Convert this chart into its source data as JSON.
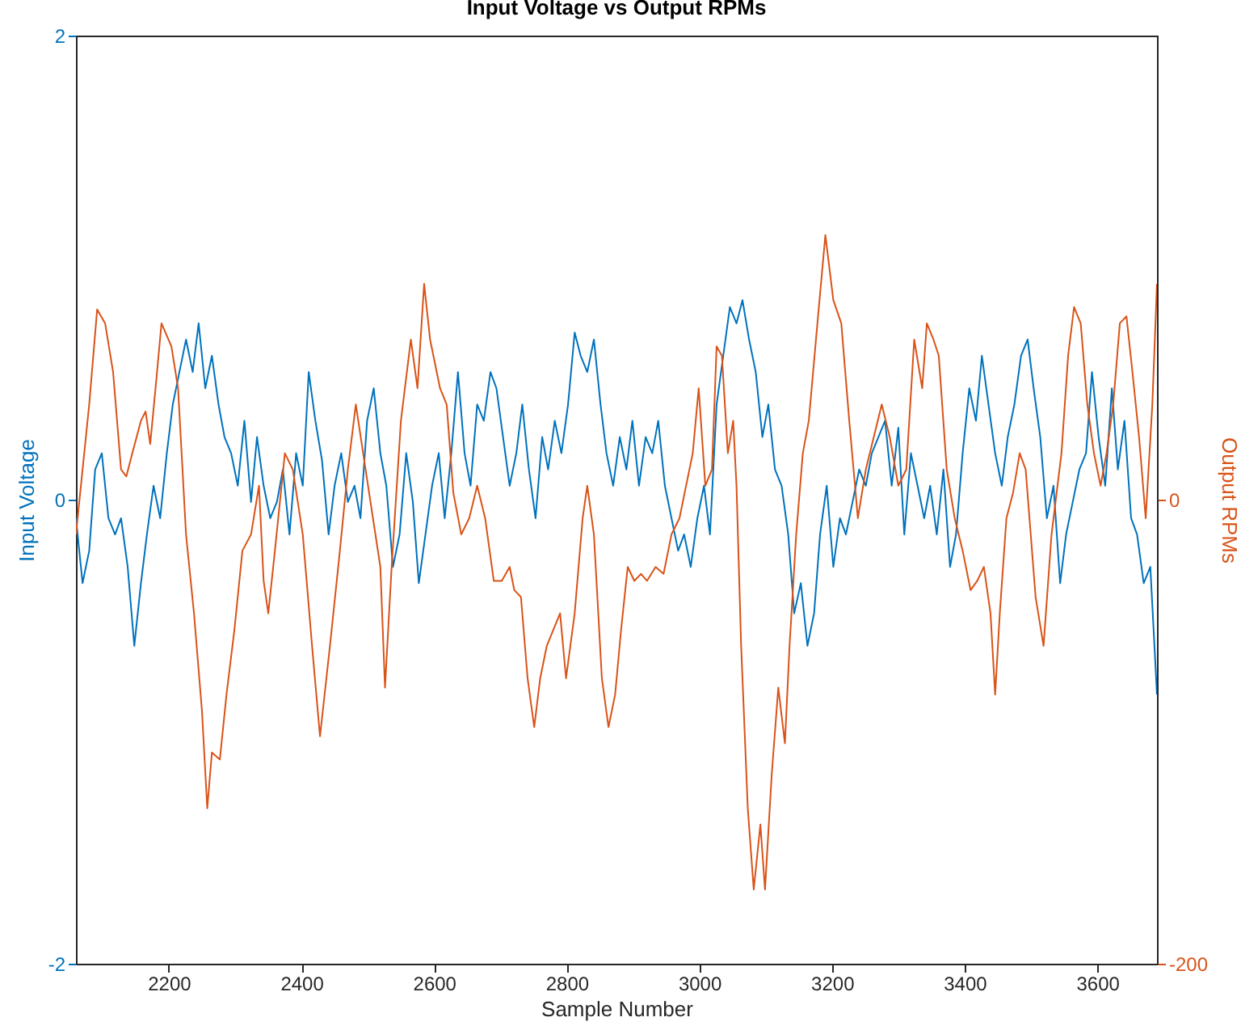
{
  "chart_data": {
    "type": "line",
    "title": "Input Voltage vs Output RPMs",
    "xlabel": "Sample Number",
    "ylabel": "Input Voltage",
    "y2label": "Output RPMs",
    "xlim": [
      2060,
      3690
    ],
    "xticks": [
      2200,
      2400,
      2600,
      2800,
      3000,
      3200,
      3400,
      3600
    ],
    "ylim": [
      -2,
      2
    ],
    "yticks": [
      -2,
      0,
      2
    ],
    "y2lim": [
      -200,
      200
    ],
    "y2ticks": [
      -200,
      0
    ],
    "grid": false,
    "series": [
      {
        "color": "#0072bd",
        "x": [
          2060,
          2070,
          2080,
          2089,
          2099,
          2109,
          2119,
          2128,
          2138,
          2148,
          2158,
          2167,
          2177,
          2187,
          2197,
          2206,
          2216,
          2226,
          2236,
          2245,
          2255,
          2265,
          2275,
          2284,
          2294,
          2304,
          2314,
          2324,
          2333,
          2343,
          2353,
          2363,
          2372,
          2382,
          2392,
          2402,
          2411,
          2421,
          2431,
          2441,
          2450,
          2460,
          2470,
          2480,
          2489,
          2499,
          2509,
          2519,
          2528,
          2538,
          2548,
          2558,
          2568,
          2577,
          2587,
          2597,
          2607,
          2616,
          2626,
          2636,
          2646,
          2655,
          2665,
          2675,
          2685,
          2694,
          2704,
          2714,
          2724,
          2733,
          2743,
          2753,
          2763,
          2772,
          2782,
          2792,
          2802,
          2812,
          2821,
          2831,
          2841,
          2851,
          2860,
          2870,
          2880,
          2890,
          2899,
          2909,
          2919,
          2929,
          2938,
          2948,
          2958,
          2968,
          2977,
          2987,
          2997,
          3007,
          3016,
          3026,
          3036,
          3046,
          3056,
          3065,
          3075,
          3085,
          3095,
          3104,
          3114,
          3124,
          3134,
          3143,
          3153,
          3163,
          3173,
          3182,
          3192,
          3202,
          3212,
          3221,
          3231,
          3241,
          3251,
          3260,
          3270,
          3280,
          3290,
          3300,
          3309,
          3319,
          3329,
          3339,
          3348,
          3358,
          3368,
          3378,
          3387,
          3397,
          3407,
          3417,
          3426,
          3436,
          3446,
          3456,
          3465,
          3475,
          3485,
          3495,
          3504,
          3514,
          3524,
          3534,
          3544,
          3553,
          3563,
          3573,
          3583,
          3592,
          3602,
          3612,
          3622,
          3631,
          3641,
          3651,
          3660,
          3670,
          3680,
          3690
        ],
        "values": [
          -0.08,
          -0.36,
          -0.22,
          0.13,
          0.2,
          -0.08,
          -0.15,
          -0.08,
          -0.29,
          -0.63,
          -0.36,
          -0.15,
          0.06,
          -0.08,
          0.2,
          0.41,
          0.55,
          0.69,
          0.55,
          0.76,
          0.48,
          0.62,
          0.41,
          0.27,
          0.2,
          0.06,
          0.34,
          -0.01,
          0.27,
          0.06,
          -0.08,
          -0.01,
          0.13,
          -0.15,
          0.2,
          0.06,
          0.55,
          0.34,
          0.17,
          -0.15,
          0.06,
          0.2,
          -0.01,
          0.06,
          -0.08,
          0.34,
          0.48,
          0.2,
          0.06,
          -0.29,
          -0.15,
          0.2,
          -0.01,
          -0.36,
          -0.15,
          0.06,
          0.2,
          -0.08,
          0.2,
          0.55,
          0.2,
          0.06,
          0.41,
          0.34,
          0.55,
          0.48,
          0.27,
          0.06,
          0.2,
          0.41,
          0.13,
          -0.08,
          0.27,
          0.13,
          0.34,
          0.2,
          0.41,
          0.72,
          0.62,
          0.55,
          0.69,
          0.41,
          0.2,
          0.06,
          0.27,
          0.13,
          0.34,
          0.06,
          0.27,
          0.2,
          0.34,
          0.06,
          -0.08,
          -0.22,
          -0.15,
          -0.29,
          -0.08,
          0.06,
          -0.15,
          0.41,
          0.62,
          0.83,
          0.76,
          0.86,
          0.69,
          0.55,
          0.27,
          0.41,
          0.13,
          0.06,
          -0.15,
          -0.49,
          -0.36,
          -0.63,
          -0.49,
          -0.15,
          0.06,
          -0.29,
          -0.08,
          -0.15,
          -0.01,
          0.13,
          0.06,
          0.2,
          0.27,
          0.34,
          0.06,
          0.31,
          -0.15,
          0.2,
          0.06,
          -0.08,
          0.06,
          -0.15,
          0.13,
          -0.29,
          -0.15,
          0.2,
          0.48,
          0.34,
          0.62,
          0.41,
          0.2,
          0.06,
          0.27,
          0.41,
          0.62,
          0.69,
          0.48,
          0.27,
          -0.08,
          0.06,
          -0.36,
          -0.15,
          -0.01,
          0.13,
          0.2,
          0.55,
          0.27,
          0.06,
          0.48,
          0.13,
          0.34,
          -0.08,
          -0.15,
          -0.36,
          -0.29,
          -0.84
        ]
      },
      {
        "color": "#d95319",
        "axis": "y2",
        "x": [
          2060,
          2080,
          2092,
          2104,
          2116,
          2128,
          2136,
          2145,
          2158,
          2165,
          2172,
          2180,
          2189,
          2204,
          2214,
          2226,
          2238,
          2250,
          2258,
          2265,
          2277,
          2287,
          2299,
          2311,
          2324,
          2336,
          2343,
          2350,
          2360,
          2375,
          2387,
          2402,
          2416,
          2428,
          2443,
          2458,
          2470,
          2482,
          2502,
          2519,
          2526,
          2536,
          2550,
          2565,
          2575,
          2585,
          2594,
          2609,
          2619,
          2629,
          2641,
          2653,
          2665,
          2677,
          2690,
          2702,
          2714,
          2721,
          2731,
          2741,
          2751,
          2760,
          2770,
          2780,
          2790,
          2799,
          2812,
          2824,
          2831,
          2841,
          2853,
          2863,
          2873,
          2882,
          2892,
          2902,
          2912,
          2921,
          2934,
          2946,
          2958,
          2970,
          2990,
          2999,
          3009,
          3019,
          3026,
          3034,
          3043,
          3051,
          3056,
          3063,
          3073,
          3082,
          3092,
          3099,
          3109,
          3119,
          3129,
          3136,
          3146,
          3156,
          3165,
          3178,
          3190,
          3202,
          3214,
          3226,
          3239,
          3251,
          3263,
          3275,
          3287,
          3300,
          3312,
          3324,
          3336,
          3343,
          3353,
          3361,
          3373,
          3385,
          3397,
          3409,
          3419,
          3429,
          3439,
          3446,
          3453,
          3463,
          3473,
          3483,
          3492,
          3507,
          3519,
          3531,
          3546,
          3556,
          3565,
          3575,
          3585,
          3595,
          3605,
          3614,
          3624,
          3634,
          3644,
          3653,
          3663,
          3673,
          3683,
          3690
        ],
        "values": [
          -15,
          41,
          82,
          76,
          55,
          13,
          10,
          20,
          34,
          38,
          24,
          48,
          76,
          66,
          48,
          -15,
          -49,
          -91,
          -133,
          -109,
          -112,
          -84,
          -56,
          -22,
          -15,
          6,
          -35,
          -49,
          -22,
          20,
          13,
          -15,
          -63,
          -102,
          -63,
          -22,
          13,
          41,
          3,
          -29,
          -81,
          -29,
          34,
          69,
          48,
          93,
          69,
          48,
          41,
          3,
          -15,
          -8,
          6,
          -8,
          -35,
          -35,
          -29,
          -39,
          -42,
          -77,
          -98,
          -77,
          -63,
          -56,
          -49,
          -77,
          -49,
          -8,
          6,
          -15,
          -77,
          -98,
          -84,
          -56,
          -29,
          -35,
          -32,
          -35,
          -29,
          -32,
          -15,
          -8,
          20,
          48,
          6,
          13,
          66,
          62,
          20,
          34,
          6,
          -63,
          -133,
          -168,
          -140,
          -168,
          -119,
          -81,
          -105,
          -63,
          -15,
          20,
          34,
          76,
          114,
          86,
          76,
          34,
          -8,
          13,
          27,
          41,
          27,
          6,
          13,
          69,
          48,
          76,
          69,
          62,
          13,
          -8,
          -22,
          -39,
          -35,
          -29,
          -49,
          -84,
          -49,
          -8,
          3,
          20,
          13,
          -42,
          -63,
          -15,
          20,
          62,
          83,
          76,
          41,
          20,
          6,
          20,
          41,
          76,
          79,
          55,
          27,
          -8,
          41,
          93
        ]
      }
    ]
  }
}
